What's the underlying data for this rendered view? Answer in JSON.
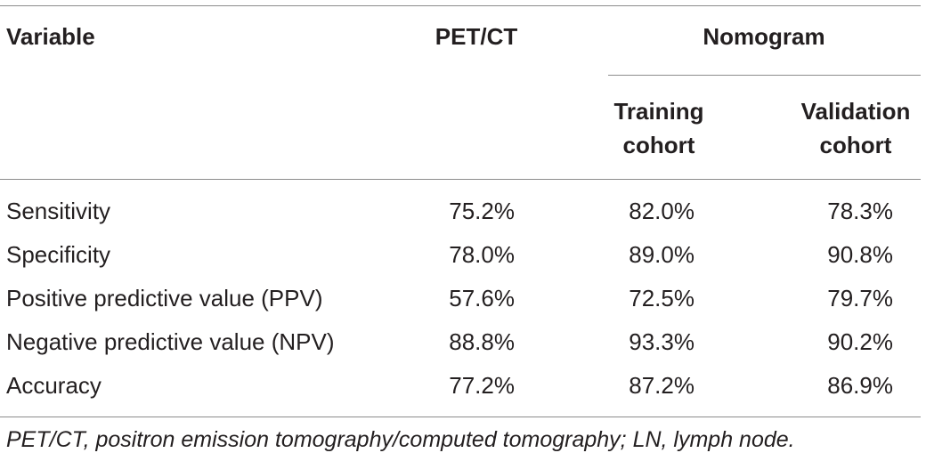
{
  "table": {
    "headers": {
      "variable": "Variable",
      "petct": "PET/CT",
      "nomogram": "Nomogram",
      "training_line1": "Training",
      "training_line2": "cohort",
      "validation_line1": "Validation",
      "validation_line2": "cohort"
    },
    "rows": [
      {
        "label": "Sensitivity",
        "petct": "75.2%",
        "training": "82.0%",
        "validation": "78.3%"
      },
      {
        "label": "Specificity",
        "petct": "78.0%",
        "training": "89.0%",
        "validation": "90.8%"
      },
      {
        "label": "Positive predictive value (PPV)",
        "petct": "57.6%",
        "training": "72.5%",
        "validation": "79.7%"
      },
      {
        "label": "Negative predictive value (NPV)",
        "petct": "88.8%",
        "training": "93.3%",
        "validation": "90.2%"
      },
      {
        "label": "Accuracy",
        "petct": "77.2%",
        "training": "87.2%",
        "validation": "86.9%"
      }
    ],
    "footnote": "PET/CT, positron emission tomography/computed tomography; LN, lymph node."
  }
}
